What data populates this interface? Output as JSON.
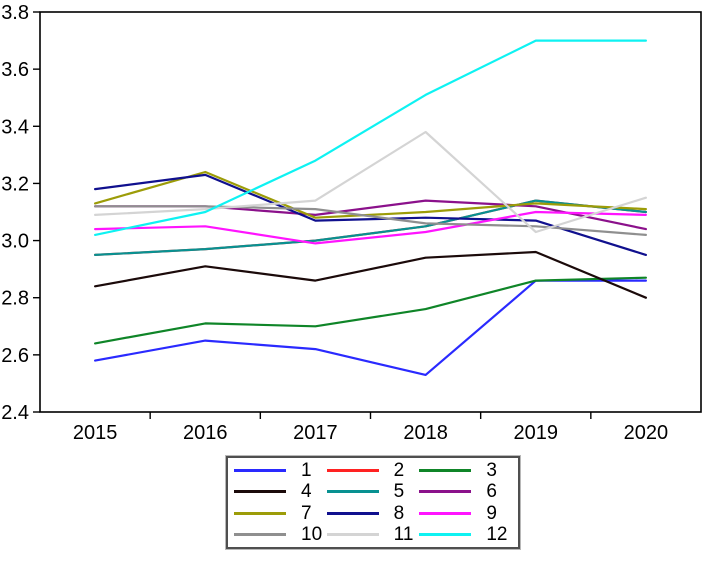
{
  "chart_data": {
    "type": "line",
    "title": "",
    "xlabel": "",
    "ylabel": "",
    "x_labels": [
      "2015",
      "2016",
      "2017",
      "2018",
      "2019",
      "2020"
    ],
    "y_tick_labels": [
      "3.8",
      "3.6",
      "3.4",
      "3.2",
      "3.0",
      "2.8",
      "2.6",
      "2.4"
    ],
    "y_tick_values": [
      3.8,
      3.6,
      3.4,
      3.2,
      3.0,
      2.8,
      2.6,
      2.4
    ],
    "ylim": [
      2.4,
      3.8
    ],
    "grid": false,
    "legend_position": "bottom",
    "frame_color": "#000000",
    "series": [
      {
        "name": "1",
        "color": "#2a2aff",
        "values": [
          2.58,
          2.65,
          2.62,
          2.53,
          2.86,
          2.86
        ]
      },
      {
        "name": "2",
        "color": "#ff2222",
        "values": [
          2.95,
          2.97,
          3.0,
          3.05,
          3.14,
          3.1
        ]
      },
      {
        "name": "3",
        "color": "#0f8528",
        "values": [
          2.64,
          2.71,
          2.7,
          2.76,
          2.86,
          2.87
        ]
      },
      {
        "name": "4",
        "color": "#1b0a0a",
        "values": [
          2.84,
          2.91,
          2.86,
          2.94,
          2.96,
          2.8
        ]
      },
      {
        "name": "5",
        "color": "#089191",
        "values": [
          2.95,
          2.97,
          3.0,
          3.05,
          3.14,
          3.1
        ]
      },
      {
        "name": "6",
        "color": "#8b118b",
        "values": [
          3.12,
          3.12,
          3.09,
          3.14,
          3.12,
          3.04
        ]
      },
      {
        "name": "7",
        "color": "#9c9c08",
        "values": [
          3.13,
          3.24,
          3.08,
          3.1,
          3.13,
          3.11
        ]
      },
      {
        "name": "8",
        "color": "#10108e",
        "values": [
          3.18,
          3.23,
          3.07,
          3.08,
          3.07,
          2.95
        ]
      },
      {
        "name": "9",
        "color": "#ff14ff",
        "values": [
          3.04,
          3.05,
          2.99,
          3.03,
          3.1,
          3.09
        ]
      },
      {
        "name": "10",
        "color": "#8f8f8f",
        "values": [
          3.12,
          3.12,
          3.11,
          3.06,
          3.05,
          3.02
        ]
      },
      {
        "name": "11",
        "color": "#d4d4d4",
        "values": [
          3.09,
          3.11,
          3.14,
          3.38,
          3.03,
          3.15
        ]
      },
      {
        "name": "12",
        "color": "#0ef2f2",
        "values": [
          3.02,
          3.1,
          3.28,
          3.51,
          3.7,
          3.7
        ]
      }
    ]
  }
}
